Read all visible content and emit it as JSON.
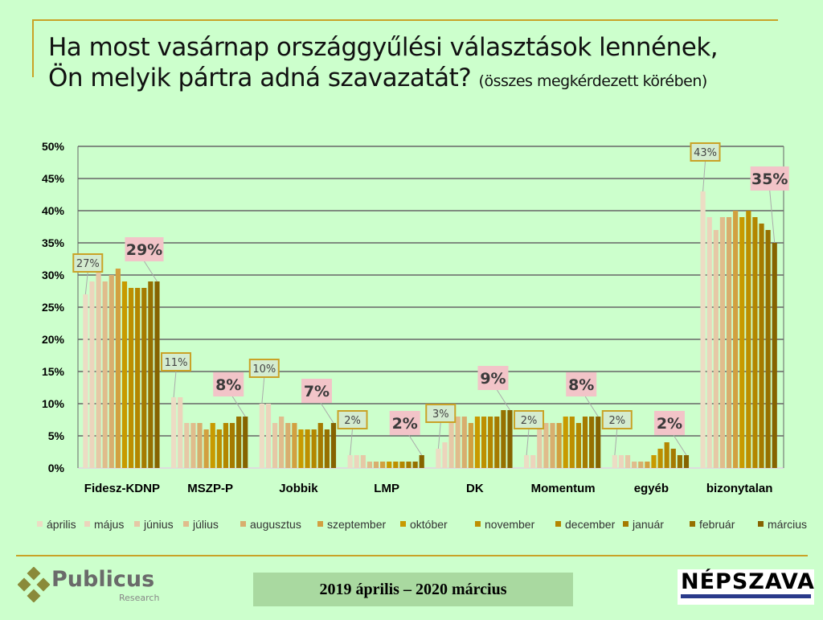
{
  "title": {
    "line1": "Ha most vasárnap országgyűlési választások lennének,",
    "line2": "Ön melyik pártra adná szavazatát?",
    "sub": "(összes megkérdezett körében)"
  },
  "footer": {
    "date_range": "2019 április – 2020 március",
    "logo_left": "Publicus",
    "logo_left_sub": "Research",
    "logo_right": "NÉPSZAVA"
  },
  "chart_data": {
    "type": "bar",
    "ylim": [
      0,
      50
    ],
    "yticks": [
      "0%",
      "5%",
      "10%",
      "15%",
      "20%",
      "25%",
      "30%",
      "35%",
      "40%",
      "45%",
      "50%"
    ],
    "grid": true,
    "legend_position": "bottom",
    "categories": [
      "Fidesz-KDNP",
      "MSZP-P",
      "Jobbik",
      "LMP",
      "DK",
      "Momentum",
      "egyéb",
      "bizonytalan"
    ],
    "series": [
      {
        "name": "április",
        "color": "#ecdcc4",
        "values": [
          27,
          11,
          10,
          2,
          3,
          2,
          2,
          43
        ]
      },
      {
        "name": "május",
        "color": "#ecd4bc",
        "values": [
          29,
          11,
          10,
          2,
          4,
          2,
          2,
          39
        ]
      },
      {
        "name": "június",
        "color": "#e6c8a6",
        "values": [
          31,
          7,
          7,
          2,
          8,
          7,
          2,
          37
        ]
      },
      {
        "name": "július",
        "color": "#e0bc8c",
        "values": [
          29,
          7,
          8,
          1,
          8,
          7,
          1,
          39
        ]
      },
      {
        "name": "augusztus",
        "color": "#d8ae6e",
        "values": [
          30,
          7,
          7,
          1,
          8,
          7,
          1,
          39
        ]
      },
      {
        "name": "szeptember",
        "color": "#d2a040",
        "values": [
          31,
          6,
          7,
          1,
          7,
          7,
          1,
          40
        ]
      },
      {
        "name": "október",
        "color": "#c89a00",
        "values": [
          29,
          7,
          6,
          1,
          8,
          8,
          2,
          39
        ]
      },
      {
        "name": "november",
        "color": "#bd8f00",
        "values": [
          28,
          6,
          6,
          1,
          8,
          8,
          3,
          40
        ]
      },
      {
        "name": "december",
        "color": "#b38600",
        "values": [
          28,
          7,
          6,
          1,
          8,
          7,
          4,
          39
        ]
      },
      {
        "name": "január",
        "color": "#a57a00",
        "values": [
          28,
          7,
          7,
          1,
          8,
          8,
          3,
          38
        ]
      },
      {
        "name": "február",
        "color": "#967000",
        "values": [
          29,
          8,
          6,
          1,
          9,
          8,
          2,
          37
        ]
      },
      {
        "name": "március",
        "color": "#866300",
        "values": [
          29,
          8,
          7,
          2,
          9,
          8,
          2,
          35
        ]
      }
    ],
    "first_labels": [
      "27%",
      "11%",
      "10%",
      "2%",
      "3%",
      "2%",
      "2%",
      "43%"
    ],
    "last_labels": [
      "29%",
      "8%",
      "7%",
      "2%",
      "9%",
      "8%",
      "2%",
      "35%"
    ]
  }
}
